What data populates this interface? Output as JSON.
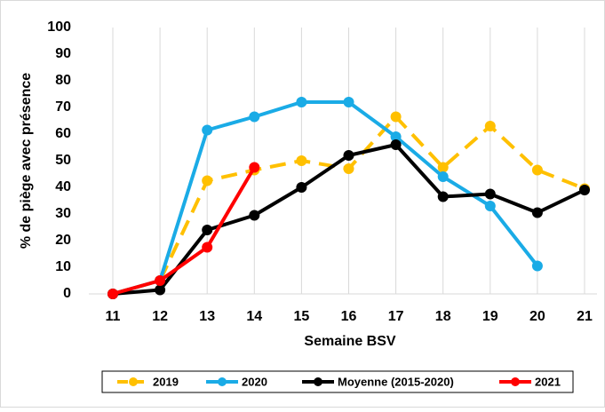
{
  "chart_data": {
    "type": "line",
    "x_label": "Semaine BSV",
    "y_label": "% de piège avec présence",
    "x": [
      11,
      12,
      13,
      14,
      15,
      16,
      17,
      18,
      19,
      20,
      21
    ],
    "xlim": [
      11,
      21
    ],
    "xticks": [
      11,
      12,
      13,
      14,
      15,
      16,
      17,
      18,
      19,
      20,
      21
    ],
    "ylim": [
      0,
      100
    ],
    "yticks": [
      0,
      10,
      20,
      30,
      40,
      50,
      60,
      70,
      80,
      90,
      100
    ],
    "grid": "x",
    "legend": "bottom",
    "series": [
      {
        "name": "2019",
        "color": "#FFC000",
        "dashed": true,
        "values": [
          0,
          5,
          42.5,
          46.5,
          50,
          47,
          66.5,
          47.5,
          63,
          46.5,
          39.5
        ]
      },
      {
        "name": "2020",
        "color": "#1AABE6",
        "values": [
          0,
          5,
          61.5,
          66.5,
          72,
          72,
          59,
          44,
          33,
          10.5,
          null
        ]
      },
      {
        "name": "Moyenne (2015-2020)",
        "color": "#000000",
        "values": [
          0,
          1.5,
          24,
          29.5,
          40,
          52,
          56,
          36.5,
          37.5,
          30.5,
          39
        ]
      },
      {
        "name": "2021",
        "color": "#FF0000",
        "values": [
          0,
          5,
          17.5,
          47.5,
          null,
          null,
          null,
          null,
          null,
          null,
          null
        ]
      }
    ]
  }
}
